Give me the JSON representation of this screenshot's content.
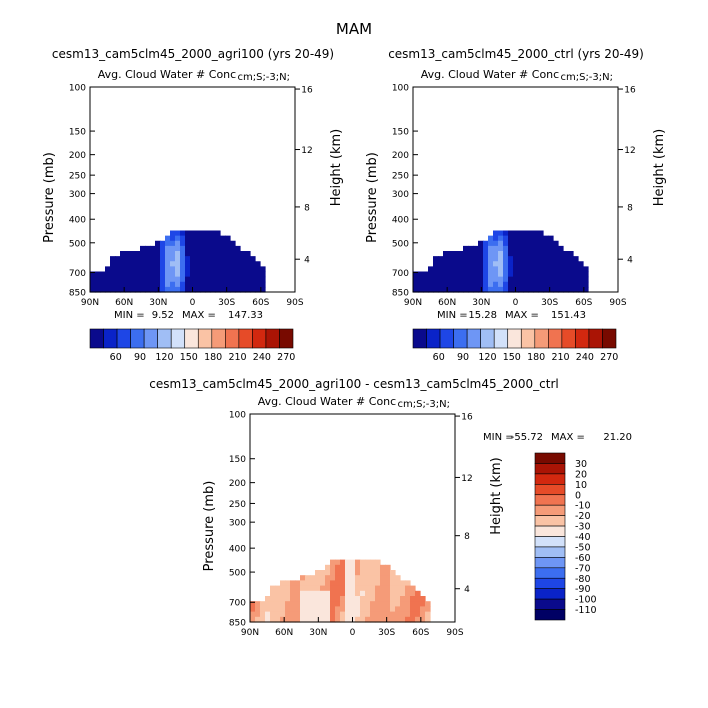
{
  "page_title": "MAM",
  "chart_data": [
    {
      "type": "heatmap",
      "title": "cesm13_cam5clm45_2000_agri100 (yrs 20-49)",
      "subtitle": "Avg. Cloud Water # Conc",
      "units": "cm;S;-3;N;",
      "ylabel": "Pressure (mb)",
      "y2label": "Height (km)",
      "x_ticks": [
        "90N",
        "60N",
        "30N",
        "0",
        "30S",
        "60S",
        "90S"
      ],
      "y_ticks": [
        "100",
        "150",
        "200",
        "250",
        "300",
        "400",
        "500",
        "700",
        "850"
      ],
      "height_ticks": [
        "16",
        "12",
        "8",
        "4"
      ],
      "stats": {
        "min_label": "MIN =",
        "min": "9.52",
        "max_label": "MAX =",
        "max": "147.33"
      },
      "colorbar": {
        "orientation": "horizontal",
        "labels": [
          "60",
          "90",
          "120",
          "150",
          "180",
          "210",
          "240",
          "270"
        ],
        "colors": [
          "#0a0a8c",
          "#0a23c8",
          "#1e46e6",
          "#3c6ef0",
          "#6e96f5",
          "#a0bef5",
          "#d2e1fa",
          "#fae6dc",
          "#fac3a5",
          "#f59b78",
          "#f07350",
          "#e64b28",
          "#d2280f",
          "#aa1405",
          "#780a00"
        ]
      }
    },
    {
      "type": "heatmap",
      "title": "cesm13_cam5clm45_2000_ctrl (yrs 20-49)",
      "subtitle": "Avg. Cloud Water # Conc",
      "units": "cm;S;-3;N;",
      "ylabel": "Pressure (mb)",
      "y2label": "Height (km)",
      "x_ticks": [
        "90N",
        "60N",
        "30N",
        "0",
        "30S",
        "60S",
        "90S"
      ],
      "y_ticks": [
        "100",
        "150",
        "200",
        "250",
        "300",
        "400",
        "500",
        "700",
        "850"
      ],
      "height_ticks": [
        "16",
        "12",
        "8",
        "4"
      ],
      "stats": {
        "min_label": "MIN =",
        "min": "15.28",
        "max_label": "MAX =",
        "max": "151.43"
      },
      "colorbar": {
        "orientation": "horizontal",
        "labels": [
          "60",
          "90",
          "120",
          "150",
          "180",
          "210",
          "240",
          "270"
        ],
        "colors": [
          "#0a0a8c",
          "#0a23c8",
          "#1e46e6",
          "#3c6ef0",
          "#6e96f5",
          "#a0bef5",
          "#d2e1fa",
          "#fae6dc",
          "#fac3a5",
          "#f59b78",
          "#f07350",
          "#e64b28",
          "#d2280f",
          "#aa1405",
          "#780a00"
        ]
      }
    },
    {
      "type": "heatmap",
      "title": "cesm13_cam5clm45_2000_agri100 - cesm13_cam5clm45_2000_ctrl",
      "subtitle": "Avg. Cloud Water # Conc",
      "units": "cm;S;-3;N;",
      "ylabel": "Pressure (mb)",
      "y2label": "Height (km)",
      "x_ticks": [
        "90N",
        "60N",
        "30N",
        "0",
        "30S",
        "60S",
        "90S"
      ],
      "y_ticks": [
        "100",
        "150",
        "200",
        "250",
        "300",
        "400",
        "500",
        "700",
        "850"
      ],
      "height_ticks": [
        "16",
        "12",
        "8",
        "4"
      ],
      "stats": {
        "min_label": "MIN =",
        "min": "-55.72",
        "max_label": "MAX =",
        "max": "21.20"
      },
      "colorbar": {
        "orientation": "vertical",
        "labels": [
          "30",
          "20",
          "10",
          "0",
          "-10",
          "-20",
          "-30",
          "-40",
          "-50",
          "-60",
          "-70",
          "-80",
          "-90",
          "-100",
          "-110"
        ],
        "colors": [
          "#780a00",
          "#aa1405",
          "#d2280f",
          "#e64b28",
          "#f07350",
          "#f59b78",
          "#fac3a5",
          "#fae6dc",
          "#d2e1fa",
          "#a0bef5",
          "#6e96f5",
          "#3c6ef0",
          "#1e46e6",
          "#0a23c8",
          "#0a0a8c",
          "#000064"
        ]
      }
    }
  ]
}
